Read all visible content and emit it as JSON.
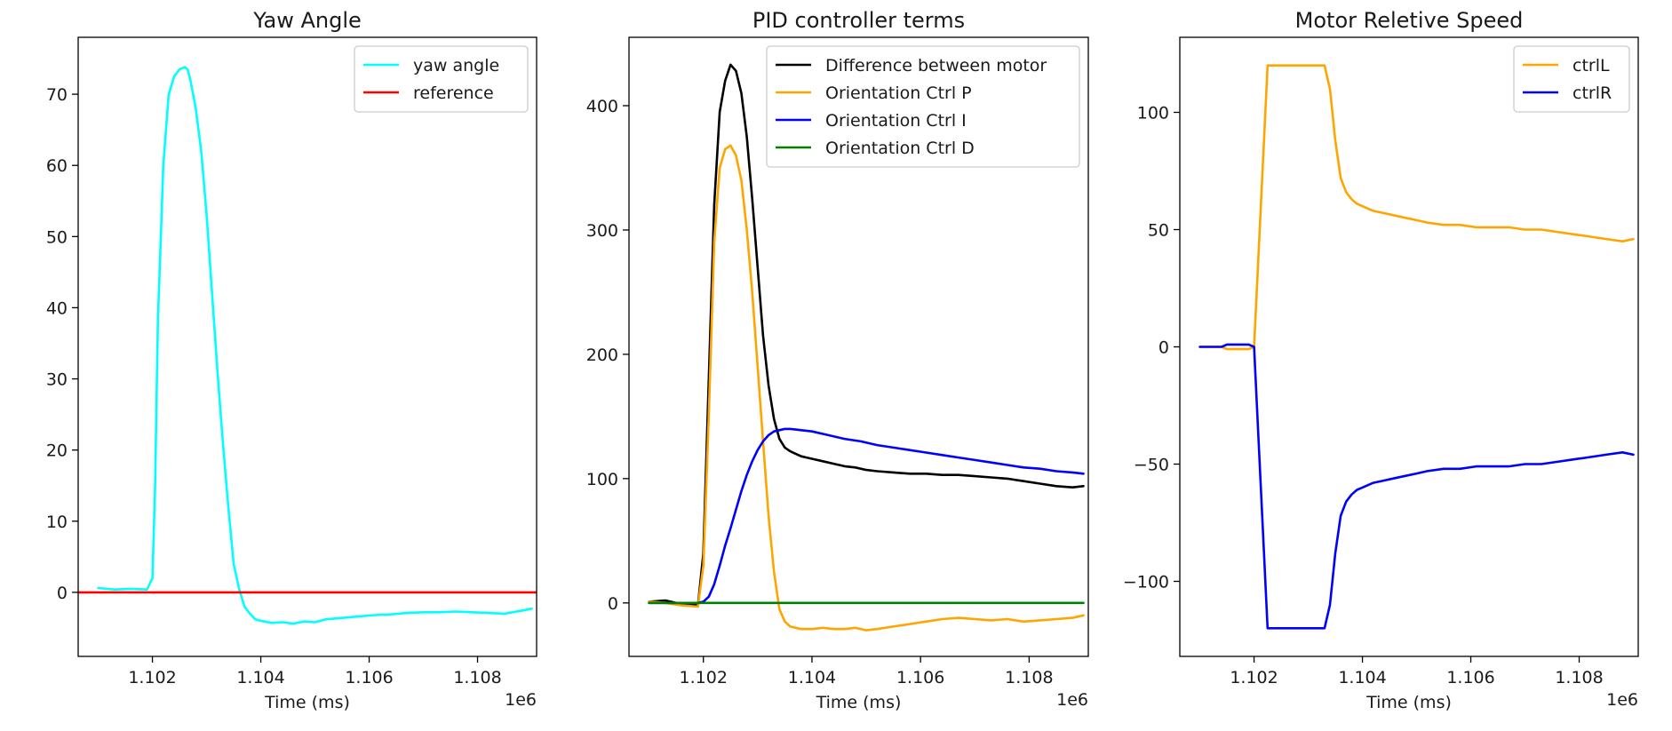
{
  "chart_data": [
    {
      "type": "line",
      "title": "Yaw Angle",
      "xlabel": "Time (ms)",
      "ylabel": "",
      "x_offset_label": "1e6",
      "xlim": [
        1.10063,
        1.10909
      ],
      "ylim": [
        -9,
        78
      ],
      "xticks": [
        1.102,
        1.104,
        1.106,
        1.108
      ],
      "xtick_labels": [
        "1.102",
        "1.104",
        "1.106",
        "1.108"
      ],
      "yticks": [
        0,
        10,
        20,
        30,
        40,
        50,
        60,
        70
      ],
      "ytick_labels": [
        "0",
        "10",
        "20",
        "30",
        "40",
        "50",
        "60",
        "70"
      ],
      "grid": false,
      "legend_position": "top-right",
      "series": [
        {
          "name": "yaw angle",
          "color": "#00ffff",
          "x": [
            1.101,
            1.1013,
            1.1016,
            1.1019,
            1.102,
            1.10205,
            1.1021,
            1.1022,
            1.1023,
            1.1024,
            1.1025,
            1.1026,
            1.10265,
            1.1027,
            1.1028,
            1.1029,
            1.103,
            1.1031,
            1.1032,
            1.1033,
            1.1034,
            1.1035,
            1.1036,
            1.1037,
            1.1038,
            1.1039,
            1.104,
            1.1042,
            1.1044,
            1.1046,
            1.1048,
            1.105,
            1.1052,
            1.1055,
            1.1058,
            1.1061,
            1.1064,
            1.1067,
            1.107,
            1.1073,
            1.1076,
            1.1079,
            1.1082,
            1.1085,
            1.1088,
            1.109
          ],
          "y": [
            0.6,
            0.4,
            0.5,
            0.4,
            2.0,
            15.0,
            38.0,
            60.0,
            70.0,
            72.5,
            73.5,
            73.8,
            73.5,
            72.0,
            68.0,
            62.0,
            53.0,
            42.0,
            31.0,
            21.0,
            12.0,
            4.0,
            0.5,
            -2.0,
            -3.0,
            -3.8,
            -4.0,
            -4.3,
            -4.2,
            -4.4,
            -4.1,
            -4.2,
            -3.8,
            -3.6,
            -3.4,
            -3.2,
            -3.1,
            -2.9,
            -2.8,
            -2.8,
            -2.7,
            -2.8,
            -2.9,
            -3.0,
            -2.6,
            -2.3
          ]
        },
        {
          "name": "reference",
          "color": "#ff0000",
          "x": [
            1.10063,
            1.10909
          ],
          "y": [
            0,
            0
          ]
        }
      ]
    },
    {
      "type": "line",
      "title": "PID controller terms",
      "xlabel": "Time (ms)",
      "ylabel": "",
      "x_offset_label": "1e6",
      "xlim": [
        1.10063,
        1.10909
      ],
      "ylim": [
        -43,
        455
      ],
      "xticks": [
        1.102,
        1.104,
        1.106,
        1.108
      ],
      "xtick_labels": [
        "1.102",
        "1.104",
        "1.106",
        "1.108"
      ],
      "yticks": [
        0,
        100,
        200,
        300,
        400
      ],
      "ytick_labels": [
        "0",
        "100",
        "200",
        "300",
        "400"
      ],
      "grid": false,
      "legend_position": "top-right",
      "series": [
        {
          "name": "Difference between motor",
          "color": "#000000",
          "x": [
            1.101,
            1.1013,
            1.1016,
            1.1019,
            1.102,
            1.1021,
            1.1022,
            1.1023,
            1.1024,
            1.1025,
            1.1026,
            1.1027,
            1.1028,
            1.1029,
            1.103,
            1.1031,
            1.1032,
            1.1033,
            1.1034,
            1.1035,
            1.1036,
            1.1037,
            1.1038,
            1.1039,
            1.104,
            1.1042,
            1.1044,
            1.1046,
            1.1048,
            1.105,
            1.1052,
            1.1055,
            1.1058,
            1.1061,
            1.1064,
            1.1067,
            1.107,
            1.1073,
            1.1076,
            1.1079,
            1.1082,
            1.1085,
            1.1088,
            1.109
          ],
          "y": [
            1,
            2,
            -1,
            -2,
            40,
            180,
            320,
            395,
            420,
            433,
            428,
            410,
            375,
            325,
            270,
            215,
            175,
            148,
            132,
            125,
            122,
            120,
            118,
            117,
            116,
            114,
            112,
            110,
            109,
            107,
            106,
            105,
            104,
            104,
            103,
            103,
            102,
            101,
            100,
            98,
            96,
            94,
            93,
            94
          ]
        },
        {
          "name": "Orientation Ctrl P",
          "color": "#ffa500",
          "x": [
            1.101,
            1.1013,
            1.1016,
            1.1019,
            1.102,
            1.1021,
            1.1022,
            1.1023,
            1.1024,
            1.1025,
            1.1026,
            1.1027,
            1.1028,
            1.1029,
            1.103,
            1.1031,
            1.1032,
            1.1033,
            1.1034,
            1.1035,
            1.1036,
            1.1037,
            1.1038,
            1.104,
            1.1042,
            1.1044,
            1.1046,
            1.1048,
            1.105,
            1.1052,
            1.1055,
            1.1058,
            1.1061,
            1.1064,
            1.1067,
            1.107,
            1.1073,
            1.1076,
            1.1079,
            1.1082,
            1.1085,
            1.1088,
            1.109
          ],
          "y": [
            1,
            0,
            -2,
            -3,
            30,
            150,
            290,
            350,
            365,
            368,
            360,
            340,
            300,
            250,
            190,
            130,
            70,
            25,
            -5,
            -15,
            -19,
            -20,
            -21,
            -21,
            -20,
            -21,
            -21,
            -20,
            -22,
            -21,
            -19,
            -17,
            -15,
            -13,
            -12,
            -13,
            -14,
            -13,
            -15,
            -14,
            -13,
            -12,
            -10
          ]
        },
        {
          "name": "Orientation Ctrl I",
          "color": "#0000ff",
          "x": [
            1.101,
            1.1015,
            1.1019,
            1.102,
            1.1021,
            1.1022,
            1.1023,
            1.1024,
            1.1025,
            1.1026,
            1.1027,
            1.1028,
            1.1029,
            1.103,
            1.1031,
            1.1032,
            1.1033,
            1.1034,
            1.1035,
            1.1036,
            1.1037,
            1.1038,
            1.104,
            1.1043,
            1.1046,
            1.1049,
            1.1052,
            1.1055,
            1.1058,
            1.1061,
            1.1064,
            1.1067,
            1.107,
            1.1073,
            1.1076,
            1.1079,
            1.1082,
            1.1085,
            1.1088,
            1.109
          ],
          "y": [
            0,
            0,
            0,
            1,
            5,
            15,
            30,
            46,
            60,
            75,
            90,
            103,
            114,
            123,
            130,
            135,
            138,
            139,
            140,
            140,
            139.5,
            139,
            138,
            135,
            132,
            130,
            127,
            125,
            123,
            121,
            119,
            117,
            115,
            113,
            111,
            109,
            108,
            106,
            105,
            104
          ]
        },
        {
          "name": "Orientation Ctrl D",
          "color": "#008000",
          "x": [
            1.101,
            1.109
          ],
          "y": [
            0,
            0
          ]
        }
      ]
    },
    {
      "type": "line",
      "title": "Motor Reletive Speed",
      "xlabel": "Time (ms)",
      "ylabel": "",
      "x_offset_label": "1e6",
      "xlim": [
        1.10063,
        1.10909
      ],
      "ylim": [
        -132,
        132
      ],
      "xticks": [
        1.102,
        1.104,
        1.106,
        1.108
      ],
      "xtick_labels": [
        "1.102",
        "1.104",
        "1.106",
        "1.108"
      ],
      "yticks": [
        -100,
        -50,
        0,
        50,
        100
      ],
      "ytick_labels": [
        "−100",
        "−50",
        "0",
        "50",
        "100"
      ],
      "grid": false,
      "legend_position": "top-right",
      "series": [
        {
          "name": "ctrlL",
          "color": "#ffa500",
          "x": [
            1.101,
            1.1014,
            1.1015,
            1.1016,
            1.1019,
            1.102,
            1.10225,
            1.1033,
            1.1034,
            1.1035,
            1.1036,
            1.1037,
            1.1038,
            1.1039,
            1.104,
            1.1042,
            1.1044,
            1.1046,
            1.1048,
            1.105,
            1.1052,
            1.1055,
            1.1058,
            1.1061,
            1.1064,
            1.1067,
            1.107,
            1.1073,
            1.1076,
            1.1079,
            1.1082,
            1.1085,
            1.1088,
            1.109
          ],
          "y": [
            0,
            0,
            -1,
            -1,
            -1,
            0,
            120,
            120,
            110,
            88,
            72,
            66,
            63,
            61,
            60,
            58,
            57,
            56,
            55,
            54,
            53,
            52,
            52,
            51,
            51,
            51,
            50,
            50,
            49,
            48,
            47,
            46,
            45,
            46
          ]
        },
        {
          "name": "ctrlR",
          "color": "#0000ff",
          "x": [
            1.101,
            1.1014,
            1.1015,
            1.1016,
            1.1019,
            1.102,
            1.10225,
            1.1033,
            1.1034,
            1.1035,
            1.1036,
            1.1037,
            1.1038,
            1.1039,
            1.104,
            1.1042,
            1.1044,
            1.1046,
            1.1048,
            1.105,
            1.1052,
            1.1055,
            1.1058,
            1.1061,
            1.1064,
            1.1067,
            1.107,
            1.1073,
            1.1076,
            1.1079,
            1.1082,
            1.1085,
            1.1088,
            1.109
          ],
          "y": [
            0,
            0,
            1,
            1,
            1,
            0,
            -120,
            -120,
            -110,
            -88,
            -72,
            -66,
            -63,
            -61,
            -60,
            -58,
            -57,
            -56,
            -55,
            -54,
            -53,
            -52,
            -52,
            -51,
            -51,
            -51,
            -50,
            -50,
            -49,
            -48,
            -47,
            -46,
            -45,
            -46
          ]
        }
      ]
    }
  ]
}
